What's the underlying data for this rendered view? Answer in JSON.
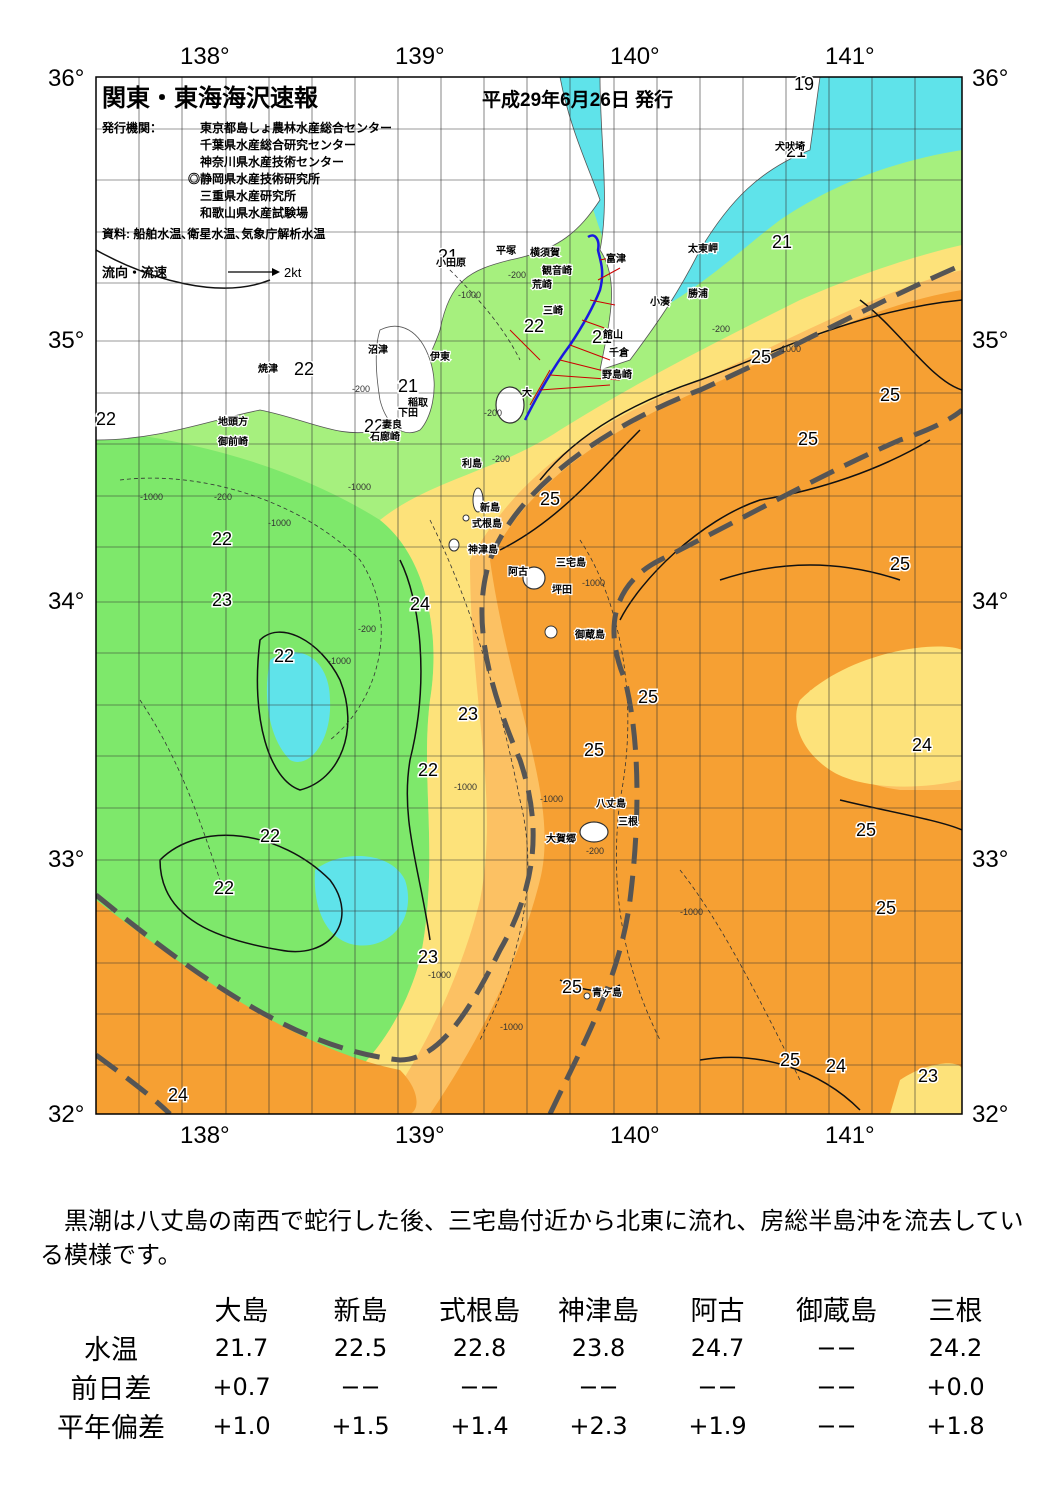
{
  "title": "関東・東海海沢速報",
  "issue_date": "平成29年6月26日 発行",
  "issuers_label": "発行機関：",
  "issuers": [
    "東京都島しょ農林水産総合センター",
    "千葉県水産総合研究センター",
    "神奈川県水産技術センター",
    "◎静岡県水産技術研究所",
    "三重県水産研究所",
    "和歌山県水産試験場"
  ],
  "sources": "資料: 船舶水温､衛星水温､気象庁解析水温",
  "legend": {
    "label": "流向・流速",
    "scale": "2kt"
  },
  "axes": {
    "lon_ticks": [
      "138°",
      "139°",
      "140°",
      "141°"
    ],
    "lat_ticks": [
      "36°",
      "35°",
      "34°",
      "33°",
      "32°"
    ]
  },
  "colors": {
    "land": "#ffffff",
    "cyan": "#5fe3ea",
    "light_green": "#a6f07e",
    "green": "#7ee86b",
    "yellow": "#fde27a",
    "light_orange": "#fcc163",
    "orange": "#f6a033",
    "kuroshio_axis": "#555555",
    "current_vector": "#1a1adf",
    "current_arrows": "#cc0000"
  },
  "temperature_labels": [
    "19",
    "21",
    "21",
    "21",
    "21",
    "22",
    "22",
    "22",
    "22",
    "22",
    "22",
    "22",
    "22",
    "22",
    "23",
    "23",
    "23",
    "24",
    "24",
    "24",
    "25",
    "25",
    "25",
    "25",
    "25",
    "25",
    "25",
    "25",
    "25",
    "25",
    "25",
    "23",
    "21"
  ],
  "place_labels": [
    "犬吠埼",
    "太東岬",
    "勝浦",
    "小湊",
    "富津",
    "館山",
    "千倉",
    "野島崎",
    "横須賀",
    "観音崎",
    "三崎",
    "平塚",
    "小田原",
    "荒崎",
    "伊東",
    "沼津",
    "焼津",
    "稲取",
    "下田",
    "石廊崎",
    "地頭方",
    "御前崎",
    "大",
    "利島",
    "新島",
    "式根島",
    "神津島",
    "三宅島",
    "阿古",
    "坪田",
    "御蔵島",
    "八丈島",
    "三根",
    "大賀郷",
    "青ヶ島",
    "妻良"
  ],
  "depth_labels": [
    "-200",
    "-1000"
  ],
  "summary": "黒潮は八丈島の南西で蛇行した後、三宅島付近から北東に流れ、房総半島沖を流去している模様です。",
  "table": {
    "columns": [
      "大島",
      "新島",
      "式根島",
      "神津島",
      "阿古",
      "御蔵島",
      "三根"
    ],
    "rows": [
      {
        "label": "水温",
        "values": [
          "21.7",
          "22.5",
          "22.8",
          "23.8",
          "24.7",
          "−−",
          "24.2"
        ]
      },
      {
        "label": "前日差",
        "values": [
          "+0.7",
          "−−",
          "−−",
          "−−",
          "−−",
          "−−",
          "+0.0"
        ]
      },
      {
        "label": "平年偏差",
        "values": [
          "+1.0",
          "+1.5",
          "+1.4",
          "+2.3",
          "+1.9",
          "−−",
          "+1.8"
        ]
      }
    ]
  }
}
